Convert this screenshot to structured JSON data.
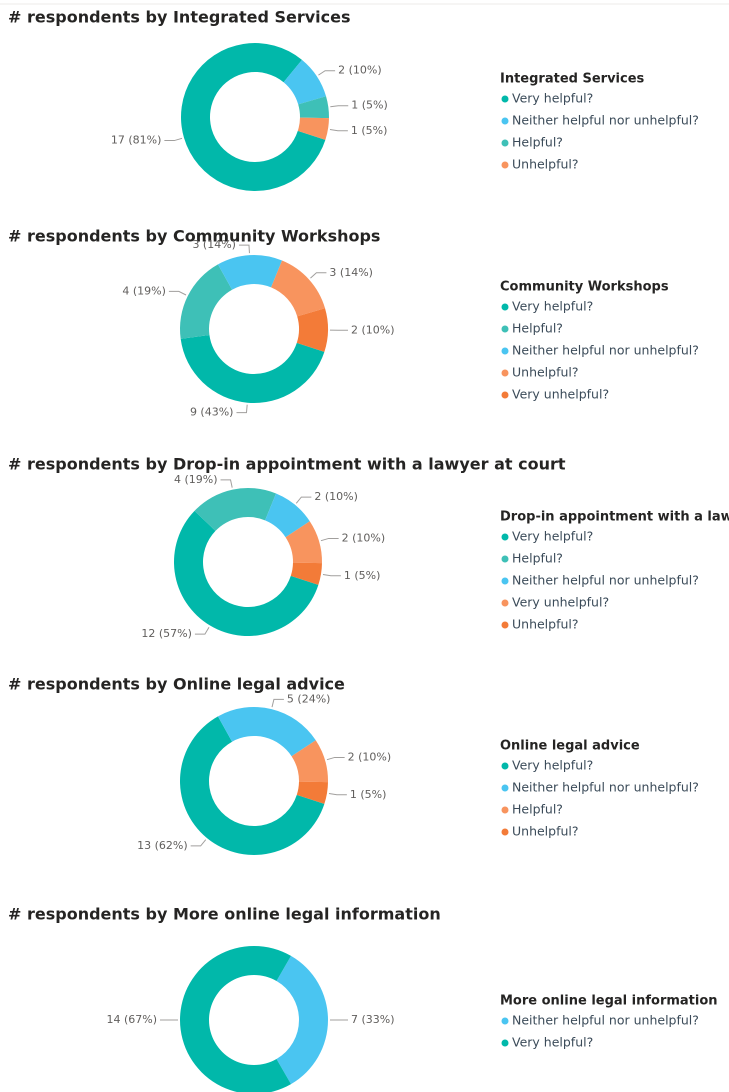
{
  "chart_data": [
    {
      "type": "donut",
      "title": "# respondents by Integrated Services",
      "legend_title": "Integrated Services",
      "categories": [
        "Very helpful?",
        "Neither helpful nor unhelpful?",
        "Helpful?",
        "Unhelpful?"
      ],
      "values": [
        17,
        2,
        1,
        1
      ],
      "value_labels": [
        "17 (81%)",
        "2 (10%)",
        "1 (5%)",
        "1 (5%)"
      ],
      "colors": [
        "#01b8aa",
        "#4ac5f1",
        "#3ec0b7",
        "#f8945e"
      ]
    },
    {
      "type": "donut",
      "title": "# respondents by Community Workshops",
      "legend_title": "Community Workshops",
      "categories": [
        "Very helpful?",
        "Helpful?",
        "Neither helpful nor unhelpful?",
        "Unhelpful?",
        "Very unhelpful?"
      ],
      "values": [
        9,
        4,
        3,
        3,
        2
      ],
      "value_labels": [
        "9 (43%)",
        "4 (19%)",
        "3 (14%)",
        "3 (14%)",
        "2 (10%)"
      ],
      "colors": [
        "#01b8aa",
        "#3ec0b7",
        "#4ac5f1",
        "#f8945e",
        "#f37b38"
      ]
    },
    {
      "type": "donut",
      "title": "# respondents by Drop-in appointment with a lawyer at court",
      "legend_title": "Drop-in appointment with a law...",
      "categories": [
        "Very helpful?",
        "Helpful?",
        "Neither helpful nor unhelpful?",
        "Very unhelpful?",
        "Unhelpful?"
      ],
      "values": [
        12,
        4,
        2,
        2,
        1
      ],
      "value_labels": [
        "12 (57%)",
        "4 (19%)",
        "2 (10%)",
        "2 (10%)",
        "1 (5%)"
      ],
      "colors": [
        "#01b8aa",
        "#3ec0b7",
        "#4ac5f1",
        "#f8945e",
        "#f37b38"
      ]
    },
    {
      "type": "donut",
      "title": "# respondents by Online legal advice",
      "legend_title": "Online legal advice",
      "categories": [
        "Very helpful?",
        "Neither helpful nor unhelpful?",
        "Helpful?",
        "Unhelpful?"
      ],
      "values": [
        13,
        5,
        2,
        1
      ],
      "value_labels": [
        "13 (62%)",
        "5 (24%)",
        "2 (10%)",
        "1 (5%)"
      ],
      "colors": [
        "#01b8aa",
        "#4ac5f1",
        "#f8945e",
        "#f37b38"
      ]
    },
    {
      "type": "donut",
      "title": "# respondents by More online legal information",
      "legend_title": "More online legal information",
      "categories": [
        "Neither helpful nor unhelpful?",
        "Very helpful?"
      ],
      "values": [
        7,
        14
      ],
      "value_labels": [
        "7 (33%)",
        "14 (67%)"
      ],
      "colors": [
        "#4ac5f1",
        "#01b8aa"
      ]
    }
  ]
}
